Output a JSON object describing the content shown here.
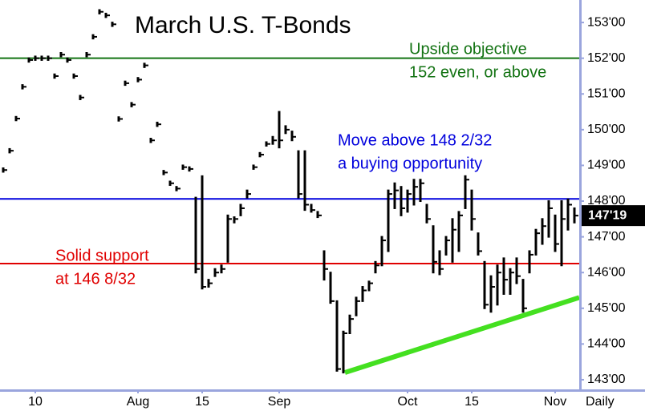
{
  "chart_data": {
    "type": "hlc",
    "title": "March U.S. T-Bonds",
    "period_label": "Daily",
    "categories": [
      null,
      null,
      null,
      null,
      null,
      "10",
      null,
      null,
      null,
      null,
      null,
      null,
      null,
      null,
      null,
      null,
      null,
      null,
      null,
      null,
      null,
      "Aug",
      null,
      null,
      null,
      null,
      null,
      null,
      null,
      null,
      null,
      "15",
      null,
      null,
      null,
      null,
      null,
      null,
      null,
      null,
      null,
      null,
      null,
      "Sep",
      null,
      null,
      null,
      null,
      null,
      null,
      null,
      null,
      null,
      null,
      null,
      null,
      null,
      null,
      null,
      null,
      null,
      null,
      null,
      "Oct",
      null,
      null,
      null,
      null,
      null,
      null,
      null,
      null,
      null,
      "15",
      null,
      null,
      null,
      null,
      null,
      null,
      null,
      null,
      null,
      null,
      null,
      null,
      "Nov",
      null,
      null,
      null
    ],
    "high": [
      148.92,
      149.46,
      150.36,
      151.25,
      152,
      152.05,
      152.05,
      152.05,
      151.55,
      152.15,
      152,
      151.55,
      150.95,
      152.15,
      152.65,
      153.35,
      153.25,
      153,
      150.35,
      151.35,
      150.75,
      151.45,
      151.85,
      149.75,
      150.2,
      148.85,
      148.55,
      148.4,
      149,
      148.95,
      148.1,
      148.7,
      145.8,
      146.1,
      146.2,
      147.6,
      147.55,
      147.9,
      148.3,
      149.0,
      149.35,
      149.65,
      149.8,
      150.5,
      150.1,
      149.95,
      149.4,
      149.4,
      147.9,
      147.7,
      146.6,
      146.0,
      145.2,
      144.35,
      144.8,
      145.3,
      145.6,
      145.75,
      146.3,
      147.0,
      148.3,
      148.5,
      148.4,
      148.3,
      148.6,
      148.6,
      147.9,
      147.3,
      146.6,
      147.0,
      147.5,
      147.7,
      148.7,
      148.3,
      147.1,
      146.3,
      145.9,
      146.2,
      146.4,
      146.1,
      146.4,
      145.8,
      146.6,
      147.2,
      147.5,
      148.0,
      147.6,
      148.0,
      148.05,
      147.8
    ],
    "low": [
      148.82,
      149.36,
      150.26,
      151.15,
      151.9,
      151.95,
      151.95,
      151.95,
      151.45,
      152.05,
      151.9,
      151.45,
      150.85,
      152.05,
      152.55,
      153.25,
      153.15,
      152.9,
      150.25,
      151.25,
      150.65,
      151.35,
      151.75,
      149.65,
      150.1,
      148.75,
      148.45,
      148.3,
      148.9,
      148.85,
      146.0,
      145.55,
      145.6,
      145.9,
      146.0,
      146.3,
      147.4,
      147.6,
      148.1,
      148.9,
      149.25,
      149.55,
      149.6,
      149.5,
      149.9,
      149.7,
      148.1,
      147.75,
      147.7,
      147.55,
      145.8,
      145.15,
      143.25,
      143.2,
      144.3,
      144.8,
      145.2,
      145.5,
      146.0,
      146.2,
      146.6,
      147.8,
      147.6,
      147.7,
      147.9,
      148.0,
      147.4,
      146.0,
      145.95,
      146.5,
      146.3,
      146.6,
      147.8,
      147.2,
      146.5,
      145.0,
      144.9,
      145.1,
      145.4,
      145.4,
      145.7,
      144.9,
      146.0,
      146.5,
      146.8,
      147.0,
      146.6,
      146.2,
      147.2,
      147.4
    ],
    "close": [
      148.87,
      149.41,
      150.31,
      151.2,
      151.95,
      152.0,
      152.0,
      152.0,
      151.5,
      152.1,
      151.95,
      151.5,
      150.9,
      152.1,
      152.6,
      153.3,
      153.2,
      152.95,
      150.3,
      151.3,
      150.7,
      151.4,
      151.8,
      149.7,
      150.15,
      148.8,
      148.5,
      148.35,
      148.95,
      148.9,
      146.1,
      145.6,
      145.7,
      146.0,
      146.1,
      147.5,
      147.5,
      147.8,
      148.2,
      148.95,
      149.3,
      149.6,
      149.7,
      149.7,
      150.0,
      149.8,
      148.2,
      147.9,
      147.75,
      147.6,
      146.1,
      145.2,
      143.3,
      144.3,
      144.7,
      145.2,
      145.5,
      145.7,
      146.2,
      146.9,
      148.2,
      148.3,
      147.8,
      148.2,
      148.4,
      148.5,
      147.5,
      146.3,
      146.1,
      146.9,
      147.2,
      147.6,
      148.6,
      147.5,
      146.6,
      145.1,
      145.6,
      146.0,
      145.8,
      146.0,
      145.9,
      145.0,
      146.5,
      147.1,
      147.3,
      147.8,
      146.8,
      147.5,
      147.9,
      147.59375
    ],
    "color": "#000000",
    "xlim": [
      -0.5,
      89.75
    ],
    "ylim": [
      142.73,
      153.63
    ],
    "yticks": [
      {
        "value": 143,
        "label": "143'00"
      },
      {
        "value": 144,
        "label": "144'00"
      },
      {
        "value": 145,
        "label": "145'00"
      },
      {
        "value": 146,
        "label": "146'00"
      },
      {
        "value": 147,
        "label": "147'00"
      },
      {
        "value": 148,
        "label": "148'00"
      },
      {
        "value": 149,
        "label": "149'00"
      },
      {
        "value": 150,
        "label": "150'00"
      },
      {
        "value": 151,
        "label": "151'00"
      },
      {
        "value": 152,
        "label": "152'00"
      },
      {
        "value": 153,
        "label": "153'00"
      }
    ],
    "last_price": {
      "value": 147.59375,
      "label": "147'19"
    },
    "levels": [
      {
        "value": 152,
        "color": "#137313",
        "text": [
          "Upside objective",
          "152 even, or above"
        ]
      },
      {
        "value": 148.0625,
        "color": "#0000dd",
        "text": [
          "Move above 148 2/32",
          "a buying opportunity"
        ]
      },
      {
        "value": 146.25,
        "color": "#e00000",
        "text": [
          "Solid support",
          "at 146 8/32"
        ]
      }
    ],
    "trendline": {
      "x": [
        53.25,
        89.75
      ],
      "y": [
        143.2,
        145.3
      ],
      "color": "#44e020"
    }
  }
}
